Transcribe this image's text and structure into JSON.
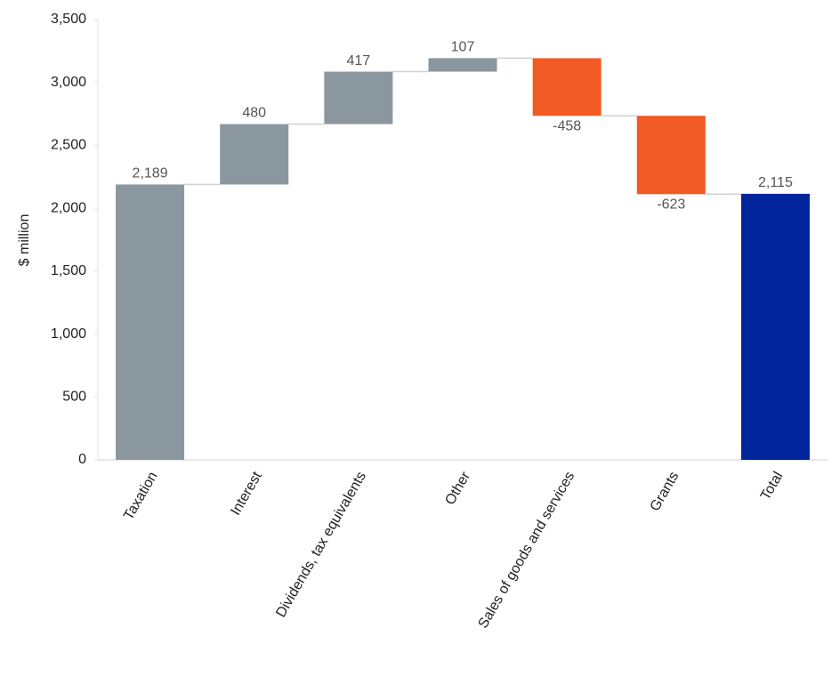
{
  "chart_data": {
    "type": "waterfall",
    "y_label": "$ million",
    "categories": [
      "Taxation",
      "Interest",
      "Dividends, tax equivalents",
      "Other",
      "Sales of goods and services",
      "Grants",
      "Total"
    ],
    "values": [
      2189,
      480,
      417,
      107,
      -458,
      -623,
      2115
    ],
    "value_labels": [
      "2,189",
      "480",
      "417",
      "107",
      "-458",
      "-623",
      "2,115"
    ],
    "last_is_total": true,
    "increase_color": "#8a979f",
    "decrease_color": "#f15a24",
    "total_color": "#00249c",
    "ylim": [
      0,
      3500
    ],
    "yticks": [
      0,
      500,
      {
        "value": 1000,
        "label": "1,000"
      },
      {
        "value": 1500,
        "label": "1,500"
      },
      {
        "value": 2000,
        "label": "2,000"
      },
      {
        "value": 2500,
        "label": "2,500"
      },
      {
        "value": 3000,
        "label": "3,000"
      },
      {
        "value": 3500,
        "label": "3,500"
      }
    ],
    "grid": false
  }
}
